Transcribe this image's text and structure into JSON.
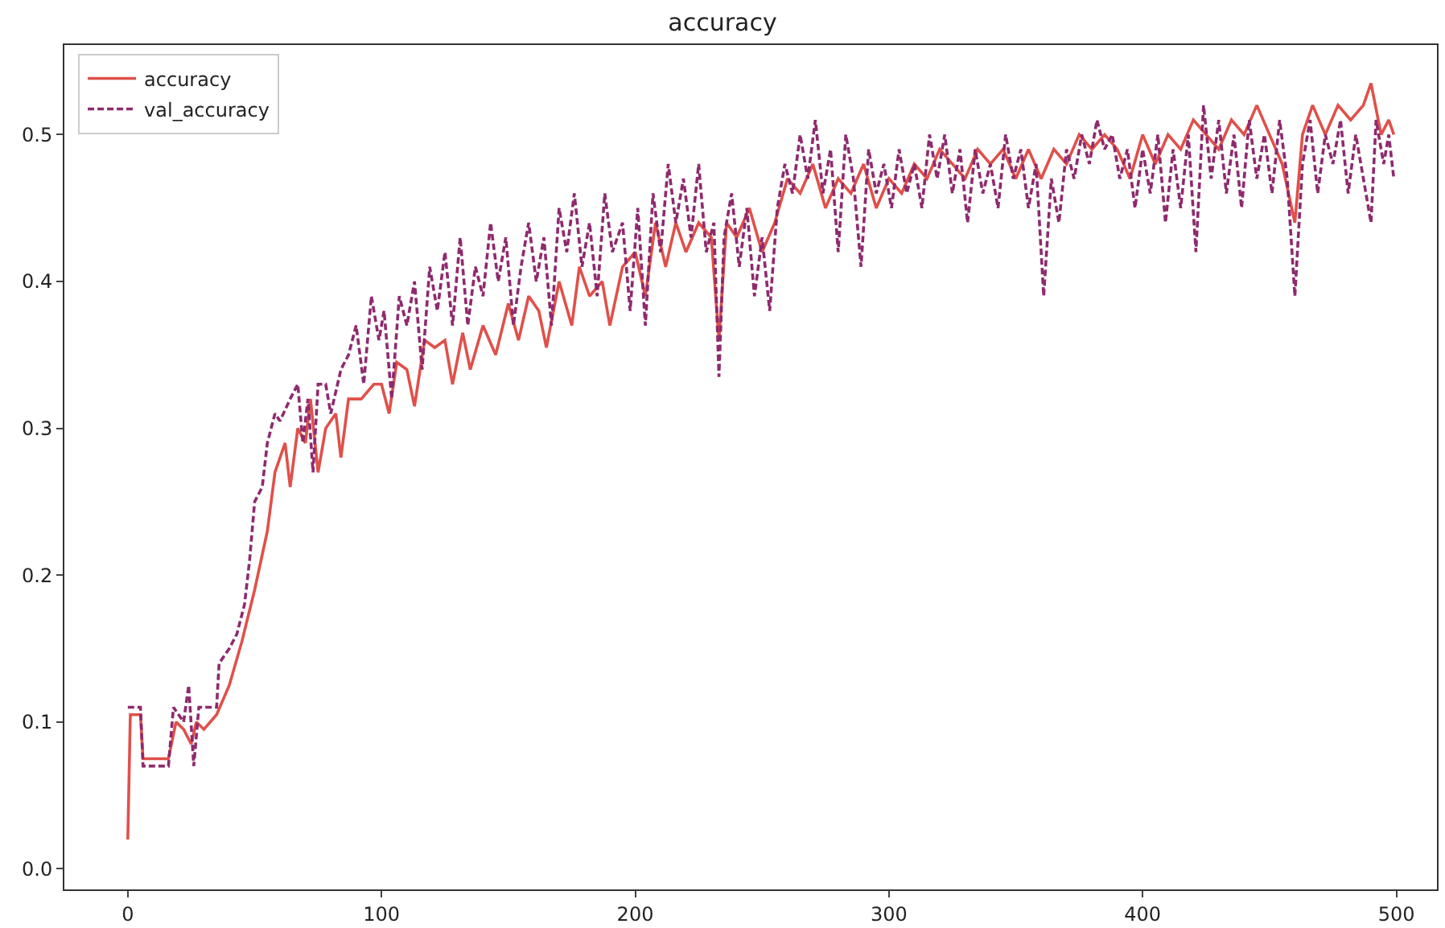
{
  "chart_data": {
    "type": "line",
    "title": "accuracy",
    "xlim": [
      -25,
      516
    ],
    "xticks": [
      0,
      100,
      200,
      300,
      400,
      500
    ],
    "ylim": [
      -0.014,
      0.561
    ],
    "yticks": [
      {
        "value": 0,
        "label": "0.0"
      },
      0.1,
      0.2,
      0.3,
      0.4,
      0.5
    ],
    "grid": false,
    "legend": "top left",
    "series": [
      {
        "name": "accuracy",
        "color": "#e0504a",
        "line_style": "solid",
        "x": [
          0,
          1,
          5,
          6,
          16,
          19,
          22,
          25,
          27,
          30,
          35,
          40,
          45,
          50,
          55,
          58,
          62,
          64,
          67,
          70,
          72,
          75,
          78,
          82,
          84,
          87,
          92,
          97,
          100,
          103,
          106,
          110,
          113,
          117,
          121,
          125,
          128,
          132,
          135,
          140,
          145,
          150,
          154,
          158,
          162,
          165,
          170,
          175,
          178,
          182,
          187,
          190,
          195,
          200,
          204,
          208,
          212,
          216,
          220,
          225,
          230,
          233,
          236,
          240,
          245,
          250,
          255,
          260,
          265,
          270,
          275,
          280,
          285,
          290,
          295,
          300,
          305,
          310,
          315,
          320,
          325,
          330,
          335,
          340,
          345,
          350,
          355,
          360,
          365,
          370,
          375,
          380,
          385,
          390,
          395,
          400,
          405,
          410,
          415,
          420,
          425,
          430,
          435,
          440,
          445,
          450,
          455,
          460,
          463,
          467,
          472,
          477,
          482,
          487,
          490,
          494,
          497,
          499
        ],
        "values": [
          0.02,
          0.105,
          0.105,
          0.075,
          0.075,
          0.1,
          0.095,
          0.085,
          0.1,
          0.095,
          0.105,
          0.125,
          0.155,
          0.19,
          0.23,
          0.27,
          0.29,
          0.26,
          0.3,
          0.29,
          0.32,
          0.27,
          0.3,
          0.31,
          0.28,
          0.32,
          0.32,
          0.33,
          0.33,
          0.31,
          0.345,
          0.34,
          0.315,
          0.36,
          0.355,
          0.36,
          0.33,
          0.365,
          0.34,
          0.37,
          0.35,
          0.385,
          0.36,
          0.39,
          0.38,
          0.355,
          0.4,
          0.37,
          0.41,
          0.39,
          0.4,
          0.37,
          0.41,
          0.42,
          0.39,
          0.44,
          0.41,
          0.44,
          0.42,
          0.44,
          0.43,
          0.36,
          0.44,
          0.43,
          0.45,
          0.42,
          0.44,
          0.47,
          0.46,
          0.48,
          0.45,
          0.47,
          0.46,
          0.48,
          0.45,
          0.47,
          0.46,
          0.48,
          0.47,
          0.49,
          0.48,
          0.47,
          0.49,
          0.48,
          0.49,
          0.47,
          0.49,
          0.47,
          0.49,
          0.48,
          0.5,
          0.49,
          0.5,
          0.49,
          0.47,
          0.5,
          0.48,
          0.5,
          0.49,
          0.51,
          0.5,
          0.49,
          0.51,
          0.5,
          0.52,
          0.5,
          0.48,
          0.44,
          0.5,
          0.52,
          0.5,
          0.52,
          0.51,
          0.52,
          0.535,
          0.5,
          0.51,
          0.5
        ]
      },
      {
        "name": "val_accuracy",
        "color": "#8e2a6e",
        "line_style": "dashed",
        "x": [
          0,
          5,
          6,
          16,
          18,
          22,
          24,
          26,
          28,
          35,
          36,
          40,
          43,
          46,
          48,
          50,
          53,
          55,
          58,
          60,
          64,
          67,
          69,
          71,
          73,
          75,
          78,
          80,
          84,
          87,
          90,
          93,
          96,
          99,
          101,
          104,
          107,
          110,
          113,
          116,
          119,
          122,
          125,
          128,
          131,
          134,
          137,
          140,
          143,
          146,
          149,
          152,
          155,
          158,
          161,
          164,
          167,
          170,
          173,
          176,
          179,
          182,
          185,
          188,
          191,
          195,
          198,
          201,
          204,
          207,
          210,
          213,
          216,
          219,
          222,
          225,
          228,
          231,
          233,
          235,
          238,
          241,
          244,
          247,
          250,
          253,
          256,
          259,
          262,
          265,
          268,
          271,
          274,
          277,
          280,
          283,
          286,
          289,
          292,
          295,
          298,
          301,
          304,
          307,
          310,
          313,
          316,
          319,
          322,
          325,
          328,
          331,
          334,
          337,
          340,
          343,
          346,
          349,
          352,
          355,
          358,
          361,
          364,
          367,
          370,
          373,
          376,
          379,
          382,
          385,
          388,
          391,
          394,
          397,
          400,
          403,
          406,
          409,
          412,
          415,
          418,
          421,
          424,
          427,
          430,
          433,
          436,
          439,
          442,
          445,
          448,
          451,
          454,
          457,
          460,
          463,
          466,
          469,
          472,
          475,
          478,
          481,
          484,
          487,
          490,
          492,
          495,
          497,
          499
        ],
        "values": [
          0.11,
          0.11,
          0.07,
          0.07,
          0.11,
          0.1,
          0.125,
          0.07,
          0.11,
          0.11,
          0.14,
          0.15,
          0.16,
          0.18,
          0.21,
          0.25,
          0.26,
          0.29,
          0.31,
          0.305,
          0.32,
          0.33,
          0.29,
          0.32,
          0.27,
          0.33,
          0.33,
          0.31,
          0.34,
          0.35,
          0.37,
          0.33,
          0.39,
          0.36,
          0.38,
          0.32,
          0.39,
          0.37,
          0.4,
          0.34,
          0.41,
          0.38,
          0.42,
          0.37,
          0.43,
          0.37,
          0.41,
          0.39,
          0.44,
          0.4,
          0.43,
          0.37,
          0.41,
          0.44,
          0.4,
          0.43,
          0.37,
          0.45,
          0.42,
          0.46,
          0.41,
          0.44,
          0.39,
          0.46,
          0.42,
          0.44,
          0.38,
          0.45,
          0.37,
          0.46,
          0.42,
          0.48,
          0.44,
          0.47,
          0.43,
          0.48,
          0.42,
          0.44,
          0.335,
          0.43,
          0.46,
          0.41,
          0.45,
          0.39,
          0.43,
          0.38,
          0.45,
          0.48,
          0.46,
          0.5,
          0.47,
          0.51,
          0.46,
          0.49,
          0.42,
          0.5,
          0.47,
          0.41,
          0.49,
          0.46,
          0.48,
          0.45,
          0.49,
          0.46,
          0.48,
          0.45,
          0.5,
          0.47,
          0.5,
          0.46,
          0.49,
          0.44,
          0.49,
          0.46,
          0.48,
          0.45,
          0.5,
          0.47,
          0.49,
          0.45,
          0.48,
          0.39,
          0.47,
          0.44,
          0.49,
          0.47,
          0.5,
          0.48,
          0.51,
          0.49,
          0.5,
          0.47,
          0.49,
          0.45,
          0.49,
          0.46,
          0.5,
          0.44,
          0.49,
          0.45,
          0.5,
          0.42,
          0.52,
          0.47,
          0.51,
          0.46,
          0.5,
          0.45,
          0.51,
          0.47,
          0.5,
          0.46,
          0.51,
          0.47,
          0.39,
          0.48,
          0.51,
          0.46,
          0.5,
          0.48,
          0.51,
          0.46,
          0.5,
          0.47,
          0.44,
          0.51,
          0.48,
          0.5,
          0.47
        ]
      }
    ]
  }
}
